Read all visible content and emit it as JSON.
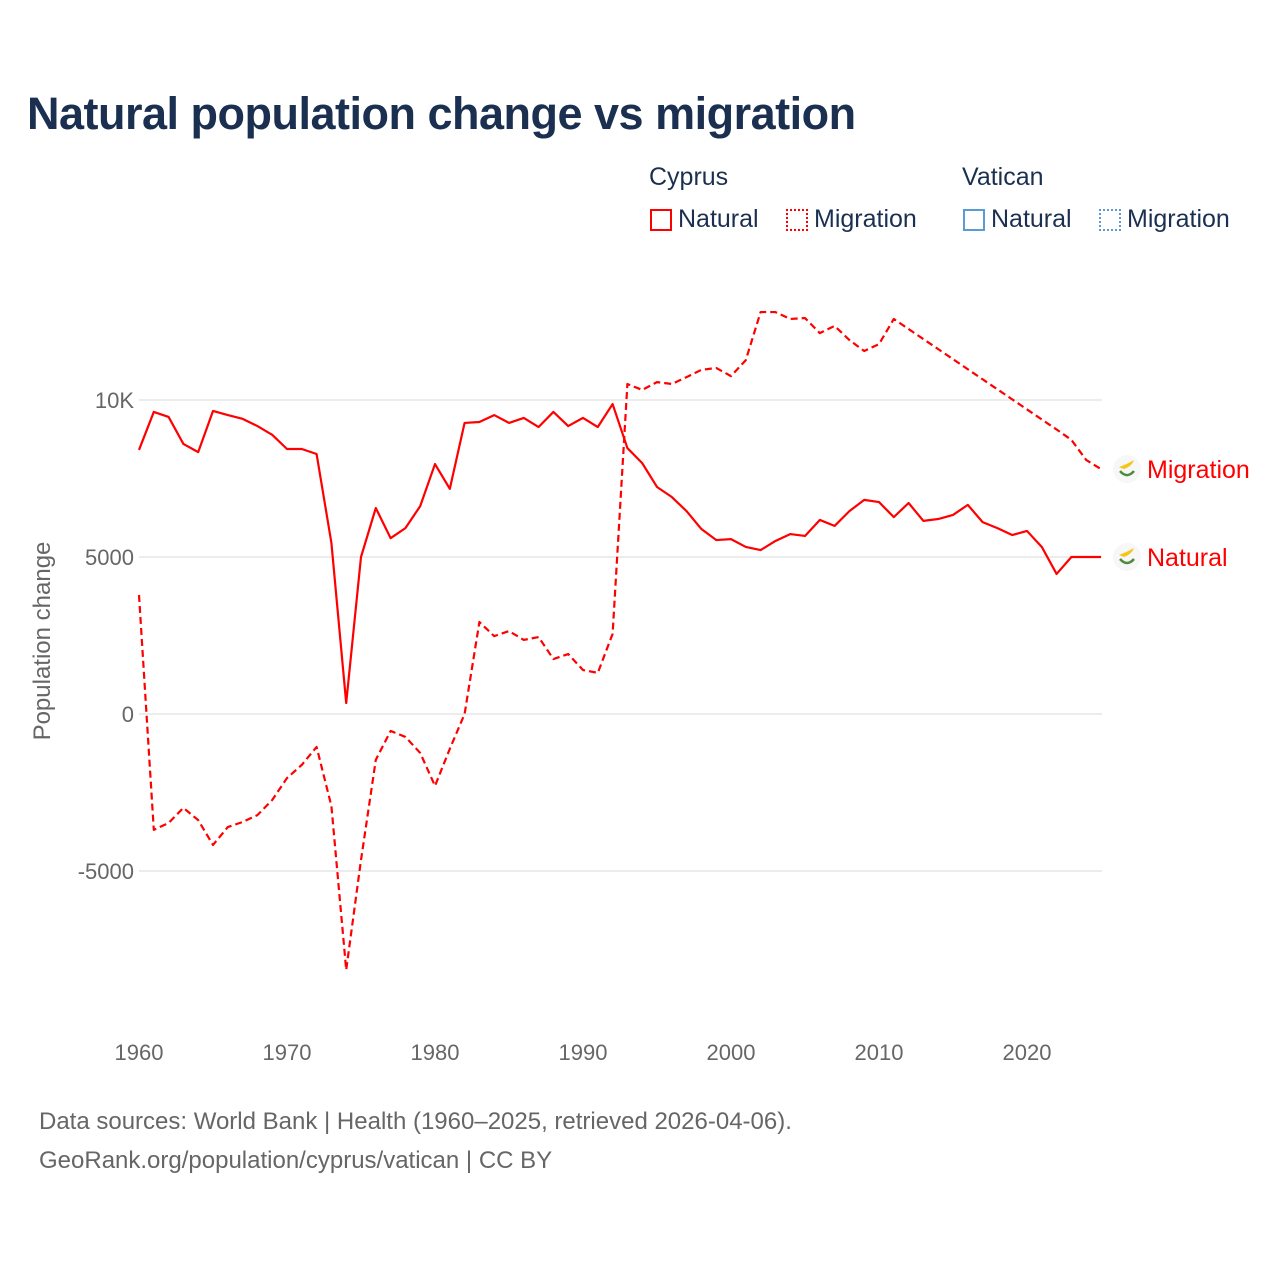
{
  "chart_data": {
    "type": "line",
    "title": "Natural population change vs migration",
    "ylabel": "Population change",
    "xlabel": "",
    "xlim": [
      1960,
      2025
    ],
    "ylim": [
      -9500,
      13500
    ],
    "x_ticks": [
      1960,
      1970,
      1980,
      1990,
      2000,
      2010,
      2020
    ],
    "y_ticks": [
      {
        "v": -5000,
        "label": "-5000"
      },
      {
        "v": 0,
        "label": "0"
      },
      {
        "v": 5000,
        "label": "5000"
      },
      {
        "v": 10000,
        "label": "10K"
      }
    ],
    "grid": true,
    "legend": {
      "placement": "top-right",
      "groups": [
        {
          "name": "Cyprus",
          "items": [
            {
              "label": "Natural",
              "style": "solid",
              "color": "#ff0000"
            },
            {
              "label": "Migration",
              "style": "dotted",
              "color": "#ff0000"
            }
          ]
        },
        {
          "name": "Vatican",
          "items": [
            {
              "label": "Natural",
              "style": "solid",
              "color": "#5b9bd5"
            },
            {
              "label": "Migration",
              "style": "dotted",
              "color": "#5b9bd5"
            }
          ]
        }
      ]
    },
    "x": [
      1960,
      1961,
      1962,
      1963,
      1964,
      1965,
      1966,
      1967,
      1968,
      1969,
      1970,
      1971,
      1972,
      1973,
      1974,
      1975,
      1976,
      1977,
      1978,
      1979,
      1980,
      1981,
      1982,
      1983,
      1984,
      1985,
      1986,
      1987,
      1988,
      1989,
      1990,
      1991,
      1992,
      1993,
      1994,
      1995,
      1996,
      1997,
      1998,
      1999,
      2000,
      2001,
      2002,
      2003,
      2004,
      2005,
      2006,
      2007,
      2008,
      2009,
      2010,
      2011,
      2012,
      2013,
      2014,
      2015,
      2016,
      2017,
      2018,
      2019,
      2020,
      2021,
      2022,
      2023,
      2024,
      2025
    ],
    "series": [
      {
        "name": "Natural",
        "country": "Cyprus",
        "color": "#ff0000",
        "dash": false,
        "end_label": "Natural",
        "values": [
          8410,
          9620,
          9460,
          8600,
          8340,
          9650,
          9520,
          9400,
          9170,
          8890,
          8440,
          8440,
          8280,
          5450,
          350,
          5000,
          6560,
          5600,
          5920,
          6620,
          7960,
          7170,
          9270,
          9300,
          9520,
          9270,
          9430,
          9140,
          9620,
          9170,
          9430,
          9140,
          9870,
          8470,
          7990,
          7230,
          6910,
          6460,
          5890,
          5540,
          5570,
          5320,
          5220,
          5510,
          5730,
          5670,
          6180,
          5990,
          6460,
          6820,
          6750,
          6270,
          6720,
          6150,
          6210,
          6340,
          6660,
          6110,
          5920,
          5700,
          5830,
          5320,
          4460,
          5000,
          5000,
          5000
        ]
      },
      {
        "name": "Migration",
        "country": "Cyprus",
        "color": "#ff0000",
        "dash": true,
        "end_label": "Migration",
        "values": [
          3790,
          -3690,
          -3470,
          -2990,
          -3380,
          -4170,
          -3600,
          -3440,
          -3220,
          -2740,
          -2040,
          -1620,
          -1050,
          -2930,
          -8150,
          -4650,
          -1460,
          -540,
          -730,
          -1240,
          -2290,
          -1110,
          0,
          2930,
          2480,
          2640,
          2360,
          2450,
          1750,
          1910,
          1400,
          1310,
          2550,
          10510,
          10320,
          10570,
          10510,
          10730,
          10960,
          11020,
          10760,
          11270,
          12800,
          12800,
          12580,
          12610,
          12130,
          12360,
          11910,
          11560,
          11780,
          12580,
          12260,
          11940,
          11620,
          11300,
          10980,
          10660,
          10340,
          10020,
          9700,
          9380,
          9060,
          8730,
          8090,
          7800
        ]
      }
    ]
  },
  "footer": {
    "line1": "Data sources: World Bank | Health (1960–2025, retrieved 2026-04-06).",
    "line2": "GeoRank.org/population/cyprus/vatican | CC BY"
  }
}
